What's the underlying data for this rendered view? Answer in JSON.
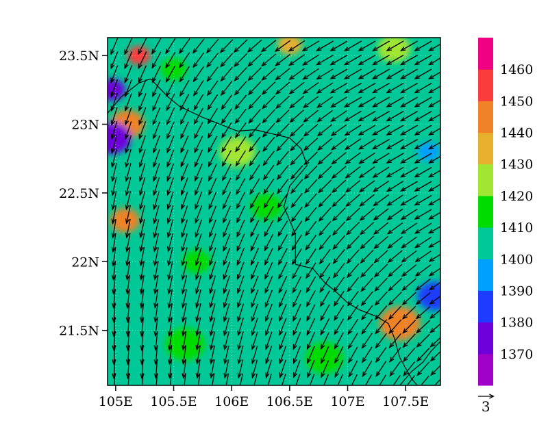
{
  "chart_data": {
    "type": "heatmap",
    "title": "",
    "xlabel": "",
    "ylabel": "",
    "xlim": [
      104.93,
      107.8
    ],
    "ylim": [
      21.1,
      23.63
    ],
    "x_ticks": [
      {
        "value": 105.0,
        "label": "105E"
      },
      {
        "value": 105.5,
        "label": "105.5E"
      },
      {
        "value": 106.0,
        "label": "106E"
      },
      {
        "value": 106.5,
        "label": "106.5E"
      },
      {
        "value": 107.0,
        "label": "107E"
      },
      {
        "value": 107.5,
        "label": "107.5E"
      }
    ],
    "y_ticks": [
      {
        "value": 21.5,
        "label": "21.5N"
      },
      {
        "value": 22.0,
        "label": "22N"
      },
      {
        "value": 22.5,
        "label": "22.5N"
      },
      {
        "value": 23.0,
        "label": "23N"
      },
      {
        "value": 23.5,
        "label": "23.5N"
      }
    ],
    "grid": true,
    "colorbar": {
      "position": "right",
      "levels": [
        1370,
        1380,
        1390,
        1400,
        1410,
        1420,
        1430,
        1440,
        1450,
        1460
      ],
      "labels": [
        "1370",
        "1380",
        "1390",
        "1400",
        "1410",
        "1420",
        "1430",
        "1440",
        "1450",
        "1460"
      ],
      "colors": [
        "#a000c8",
        "#6e00dc",
        "#1e3cff",
        "#00a0ff",
        "#00c896",
        "#00dc00",
        "#a0e632",
        "#e6af2d",
        "#f08228",
        "#fa3c3c",
        "#f00082"
      ]
    },
    "background_level_color": "#00c896",
    "patches": [
      {
        "lon": 105.2,
        "lat": 23.5,
        "value": 1450
      },
      {
        "lon": 105.1,
        "lat": 23.0,
        "value": 1445
      },
      {
        "lon": 104.97,
        "lat": 23.25,
        "value": 1375
      },
      {
        "lon": 104.97,
        "lat": 22.9,
        "value": 1372
      },
      {
        "lon": 105.08,
        "lat": 22.3,
        "value": 1448
      },
      {
        "lon": 107.45,
        "lat": 21.55,
        "value": 1440
      },
      {
        "lon": 107.4,
        "lat": 23.55,
        "value": 1425
      },
      {
        "lon": 106.5,
        "lat": 23.58,
        "value": 1435
      },
      {
        "lon": 106.05,
        "lat": 22.8,
        "value": 1425
      },
      {
        "lon": 105.7,
        "lat": 22.0,
        "value": 1415
      },
      {
        "lon": 105.6,
        "lat": 21.4,
        "value": 1415
      },
      {
        "lon": 106.3,
        "lat": 22.4,
        "value": 1415
      },
      {
        "lon": 107.7,
        "lat": 22.8,
        "value": 1395
      },
      {
        "lon": 107.75,
        "lat": 21.75,
        "value": 1385
      },
      {
        "lon": 105.5,
        "lat": 23.4,
        "value": 1415
      },
      {
        "lon": 106.8,
        "lat": 21.3,
        "value": 1415
      }
    ],
    "wind_vectors": {
      "description": "Wind field: mostly from the NE (arrows pointing SW), turning to northerly (pointing S) in the west and south-west of the domain",
      "u_east": [
        -2.6,
        -1.2,
        -0.2
      ],
      "v_north": [
        -1.5,
        -2.6,
        -3.0
      ]
    },
    "reference_vector": {
      "magnitude": 3,
      "label": "3"
    },
    "boundaries": [
      {
        "name": "border",
        "points": [
          [
            104.93,
            23.08
          ],
          [
            105.05,
            23.2
          ],
          [
            105.2,
            23.3
          ],
          [
            105.3,
            23.33
          ],
          [
            105.45,
            23.2
          ],
          [
            105.55,
            23.13
          ],
          [
            105.75,
            23.05
          ],
          [
            105.9,
            23.0
          ],
          [
            106.05,
            22.95
          ],
          [
            106.2,
            22.96
          ],
          [
            106.35,
            22.93
          ],
          [
            106.5,
            22.9
          ],
          [
            106.6,
            22.82
          ],
          [
            106.65,
            22.7
          ],
          [
            106.5,
            22.55
          ],
          [
            106.45,
            22.4
          ],
          [
            106.5,
            22.3
          ],
          [
            106.55,
            22.2
          ],
          [
            106.55,
            22.05
          ],
          [
            106.55,
            21.98
          ],
          [
            106.7,
            21.95
          ],
          [
            106.8,
            21.85
          ],
          [
            106.9,
            21.78
          ],
          [
            107.0,
            21.7
          ],
          [
            107.1,
            21.65
          ],
          [
            107.25,
            21.6
          ],
          [
            107.35,
            21.55
          ],
          [
            107.4,
            21.45
          ],
          [
            107.45,
            21.3
          ],
          [
            107.55,
            21.15
          ],
          [
            107.6,
            21.1
          ]
        ]
      },
      {
        "name": "coastline",
        "points": [
          [
            107.45,
            21.1
          ],
          [
            107.55,
            21.2
          ],
          [
            107.65,
            21.27
          ],
          [
            107.72,
            21.35
          ],
          [
            107.8,
            21.42
          ]
        ]
      }
    ]
  }
}
